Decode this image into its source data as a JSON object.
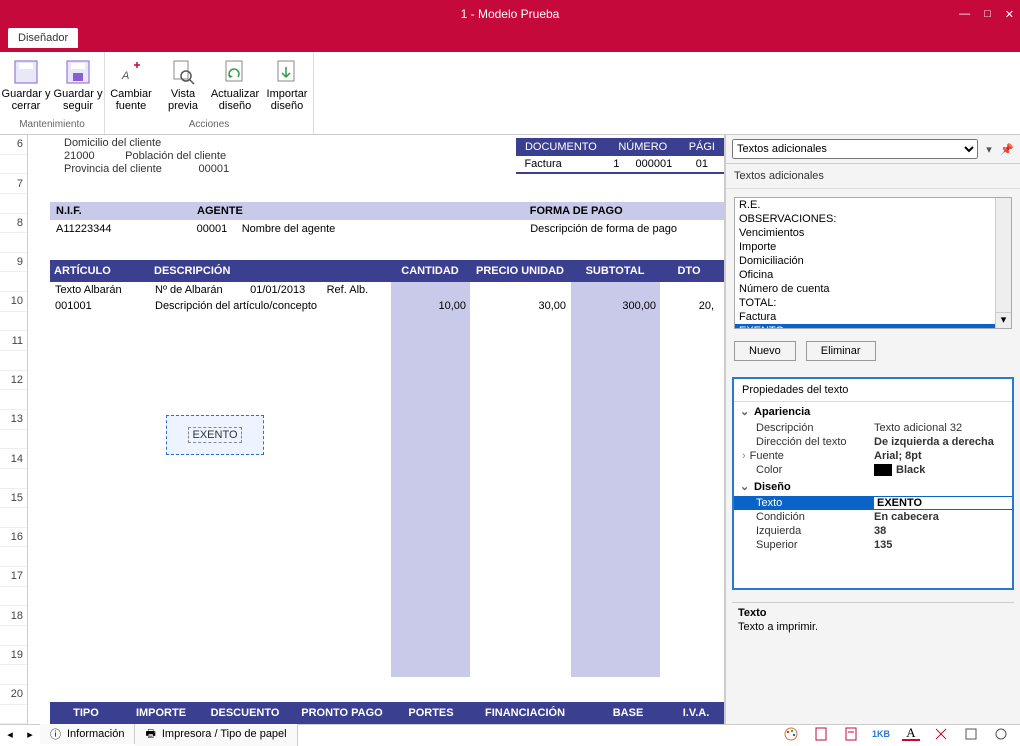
{
  "window": {
    "title": "1 - Modelo Prueba"
  },
  "tab": {
    "label": "Diseñador"
  },
  "ribbon": {
    "group1": {
      "label": "Mantenimiento",
      "btn1": "Guardar y cerrar",
      "btn2": "Guardar y seguir"
    },
    "group2": {
      "label": "Acciones",
      "btn1": "Cambiar fuente",
      "btn2": "Vista previa",
      "btn3": "Actualizar diseño",
      "btn4": "Importar diseño"
    }
  },
  "design": {
    "ruler_ticks": [
      "6",
      "-",
      "7",
      "-",
      "8",
      "-",
      "9",
      "-",
      "10",
      "-",
      "11",
      "-",
      "12",
      "-",
      "13",
      "-",
      "14",
      "-",
      "15",
      "-",
      "16",
      "-",
      "17",
      "-",
      "18",
      "-",
      "19",
      "-",
      "20",
      "-"
    ],
    "client": {
      "l1": "Domicilio del cliente",
      "l2a": "21000",
      "l2b": "Población del cliente",
      "l3a": "Provincia del cliente",
      "l3b": "00001"
    },
    "doc_table": {
      "h": [
        "DOCUMENTO",
        "NÚMERO",
        "PÁGI"
      ],
      "r": [
        "Factura",
        "1",
        "000001",
        "01"
      ]
    },
    "band1": {
      "h": [
        "N.I.F.",
        "AGENTE",
        "FORMA DE PAGO"
      ],
      "v": [
        "A11223344",
        "00001",
        "Nombre del agente",
        "Descripción de forma de pago"
      ]
    },
    "detail_header": [
      "ARTÍCULO",
      "DESCRIPCIÓN",
      "CANTIDAD",
      "PRECIO UNIDAD",
      "SUBTOTAL",
      "DTO"
    ],
    "detail": {
      "r1": [
        "Texto Albarán",
        "Nº de Albarán",
        "01/01/2013",
        "Ref. Alb."
      ],
      "r2c1": "001001",
      "r2c2": "Descripción del artículo/concepto",
      "r2c3": "10,00",
      "r2c4": "30,00",
      "r2c5": "300,00",
      "r2c6": "20,"
    },
    "exento": "EXENTO",
    "footer_header": [
      "TIPO",
      "IMPORTE",
      "DESCUENTO",
      "PRONTO PAGO",
      "PORTES",
      "FINANCIACIÓN",
      "BASE",
      "I.V.A."
    ]
  },
  "panel": {
    "selector": "Textos adicionales",
    "section": "Textos adicionales",
    "list": [
      "R.E.",
      "OBSERVACIONES:",
      "Vencimientos",
      "Importe",
      "Domiciliación",
      "Oficina",
      "Número de cuenta",
      "TOTAL:",
      "Factura",
      "EXENTO"
    ],
    "selected_index": 9,
    "btn_new": "Nuevo",
    "btn_del": "Eliminar",
    "props_title": "Propiedades del texto",
    "cat1": "Apariencia",
    "cat2": "Diseño",
    "p_desc_k": "Descripción",
    "p_desc_v": "Texto adicional 32",
    "p_dir_k": "Dirección del texto",
    "p_dir_v": "De izquierda a derecha",
    "p_font_k": "Fuente",
    "p_font_v": "Arial; 8pt",
    "p_color_k": "Color",
    "p_color_v": "Black",
    "p_texto_k": "Texto",
    "p_texto_v": "EXENTO",
    "p_cond_k": "Condición",
    "p_cond_v": "En cabecera",
    "p_izq_k": "Izquierda",
    "p_izq_v": "38",
    "p_sup_k": "Superior",
    "p_sup_v": "135",
    "desc_t": "Texto",
    "desc_v": "Texto a imprimir."
  },
  "status": {
    "tab1": "Información",
    "tab2": "Impresora / Tipo de papel",
    "tab1_icon": "ⓘ",
    "tab2_icon": "🖶"
  },
  "cols": {
    "detail": [
      100,
      240,
      80,
      100,
      90,
      58
    ],
    "band1_h": [
      160,
      380,
      228
    ],
    "band1_v": [
      160,
      50,
      330,
      228
    ],
    "footer": [
      72,
      78,
      90,
      104,
      74,
      114,
      92,
      44
    ]
  },
  "colors": {
    "brand": "#c6093b",
    "navy": "#3a3f8f",
    "lav": "#c9caea",
    "sel": "#0a64c8",
    "panel_border": "#2a78d0"
  }
}
